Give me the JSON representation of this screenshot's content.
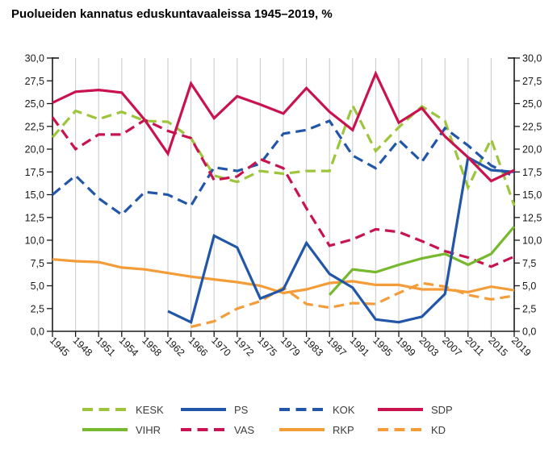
{
  "title": "Puolueiden kannatus eduskuntavaaleissa 1945–2019, %",
  "chart_data": {
    "type": "line",
    "categories": [
      "1945",
      "1948",
      "1951",
      "1954",
      "1958",
      "1962",
      "1966",
      "1970",
      "1972",
      "1975",
      "1979",
      "1983",
      "1987",
      "1991",
      "1995",
      "1999",
      "2003",
      "2007",
      "2011",
      "2015",
      "2019"
    ],
    "y_axis": {
      "min": 0,
      "max": 30,
      "tick_step": 2.5,
      "tick_labels": [
        "0,0",
        "2,5",
        "5,0",
        "7,5",
        "10,0",
        "12,5",
        "15,0",
        "17,5",
        "20,0",
        "22,5",
        "25,0",
        "27,5",
        "30,0"
      ],
      "sides": [
        "left",
        "right"
      ]
    },
    "grid": {
      "vertical": true,
      "horizontal": false,
      "color": "#cccccc"
    },
    "axis_color": "#1a1a1a",
    "tick_label_color": "#1a1a1a",
    "series": [
      {
        "name": "KESK",
        "color": "#9dc53c",
        "dash": true,
        "values": [
          21.3,
          24.2,
          23.3,
          24.1,
          23.1,
          23.0,
          21.2,
          17.1,
          16.4,
          17.6,
          17.3,
          17.6,
          17.6,
          24.8,
          19.8,
          22.4,
          24.7,
          23.1,
          15.8,
          21.1,
          13.8
        ]
      },
      {
        "name": "PS",
        "color": "#2256a8",
        "dash": false,
        "values": [
          null,
          null,
          null,
          null,
          null,
          2.2,
          1.0,
          10.5,
          9.2,
          3.6,
          4.6,
          9.7,
          6.3,
          4.8,
          1.3,
          1.0,
          1.6,
          4.1,
          19.1,
          17.7,
          17.5
        ]
      },
      {
        "name": "KOK",
        "color": "#2256a8",
        "dash": true,
        "values": [
          15.0,
          17.1,
          14.6,
          12.8,
          15.3,
          15.0,
          13.8,
          18.0,
          17.6,
          18.4,
          21.7,
          22.1,
          23.1,
          19.3,
          17.9,
          21.0,
          18.6,
          22.3,
          20.4,
          18.2,
          17.0
        ]
      },
      {
        "name": "SDP",
        "color": "#c8134f",
        "dash": false,
        "values": [
          25.1,
          26.3,
          26.5,
          26.2,
          23.2,
          19.5,
          27.2,
          23.4,
          25.8,
          24.9,
          23.9,
          26.7,
          24.1,
          22.1,
          28.3,
          22.9,
          24.5,
          21.4,
          19.1,
          16.5,
          17.7
        ]
      },
      {
        "name": "VIHR",
        "color": "#76b82e",
        "dash": false,
        "values": [
          null,
          null,
          null,
          null,
          null,
          null,
          null,
          null,
          null,
          null,
          null,
          null,
          4.0,
          6.8,
          6.5,
          7.3,
          8.0,
          8.5,
          7.3,
          8.5,
          11.5
        ]
      },
      {
        "name": "VAS",
        "color": "#c8134f",
        "dash": true,
        "values": [
          23.5,
          20.0,
          21.6,
          21.6,
          23.2,
          22.0,
          21.2,
          16.6,
          17.0,
          18.9,
          17.9,
          13.5,
          9.4,
          10.1,
          11.2,
          10.9,
          9.9,
          8.8,
          8.1,
          7.1,
          8.2
        ]
      },
      {
        "name": "RKP",
        "color": "#f49c38",
        "dash": false,
        "values": [
          7.9,
          7.7,
          7.6,
          7.0,
          6.8,
          6.4,
          6.0,
          5.7,
          5.4,
          5.0,
          4.2,
          4.6,
          5.3,
          5.5,
          5.1,
          5.1,
          4.6,
          4.6,
          4.3,
          4.9,
          4.5
        ]
      },
      {
        "name": "KD",
        "color": "#f49c38",
        "dash": true,
        "values": [
          null,
          null,
          null,
          null,
          null,
          null,
          0.5,
          1.1,
          2.5,
          3.3,
          4.8,
          3.0,
          2.6,
          3.1,
          3.0,
          4.2,
          5.3,
          4.9,
          4.0,
          3.5,
          3.9
        ]
      }
    ],
    "legend": {
      "position": "bottom",
      "order": [
        "KESK",
        "PS",
        "KOK",
        "SDP",
        "VIHR",
        "VAS",
        "RKP",
        "KD"
      ]
    }
  }
}
